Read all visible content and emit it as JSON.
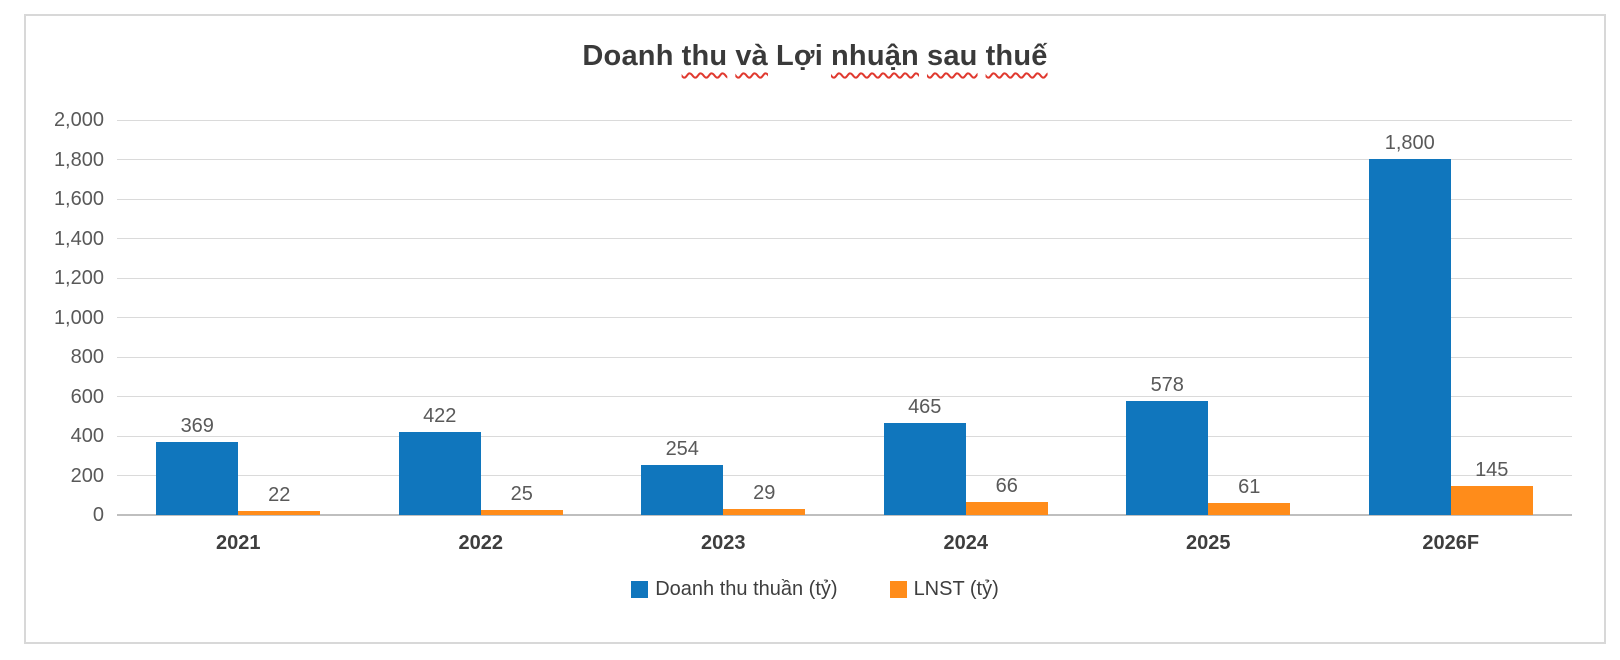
{
  "title": {
    "text": "Doanh thu và Lợi nhuận sau thuế",
    "words": [
      {
        "t": "Doanh",
        "squiggle": false
      },
      {
        "t": "thu",
        "squiggle": true
      },
      {
        "t": "và",
        "squiggle": true
      },
      {
        "t": "Lợi",
        "squiggle": false
      },
      {
        "t": "nhuận",
        "squiggle": true
      },
      {
        "t": "sau",
        "squiggle": true
      },
      {
        "t": "thuế",
        "squiggle": true
      }
    ]
  },
  "chart_data": {
    "type": "bar",
    "title": "Doanh thu và Lợi nhuận sau thuế",
    "categories": [
      "2021",
      "2022",
      "2023",
      "2024",
      "2025",
      "2026F"
    ],
    "series": [
      {
        "name": "Doanh thu thuần (tỷ)",
        "color": "#1076bd",
        "values": [
          369,
          422,
          254,
          465,
          578,
          1800
        ],
        "labels": [
          "369",
          "422",
          "254",
          "465",
          "578",
          "1,800"
        ]
      },
      {
        "name": "LNST (tỷ)",
        "color": "#ff8c1a",
        "values": [
          22,
          25,
          29,
          66,
          61,
          145
        ],
        "labels": [
          "22",
          "25",
          "29",
          "66",
          "61",
          "145"
        ]
      }
    ],
    "xlabel": "",
    "ylabel": "",
    "ylim": [
      0,
      2000
    ],
    "ytick_step": 200,
    "ytick_labels": [
      "0",
      "200",
      "400",
      "600",
      "800",
      "1,000",
      "1,200",
      "1,400",
      "1,600",
      "1,800",
      "2,000"
    ],
    "grid": true,
    "legend_position": "bottom",
    "colors": {
      "gridline": "#dadada",
      "axis_line": "#bfbfbf",
      "tick_text": "#595959",
      "label_text": "#3e3e3e",
      "title_text": "#3a3a3a",
      "frame_border": "#d8d8d8",
      "squiggle": "#e0392f"
    }
  }
}
